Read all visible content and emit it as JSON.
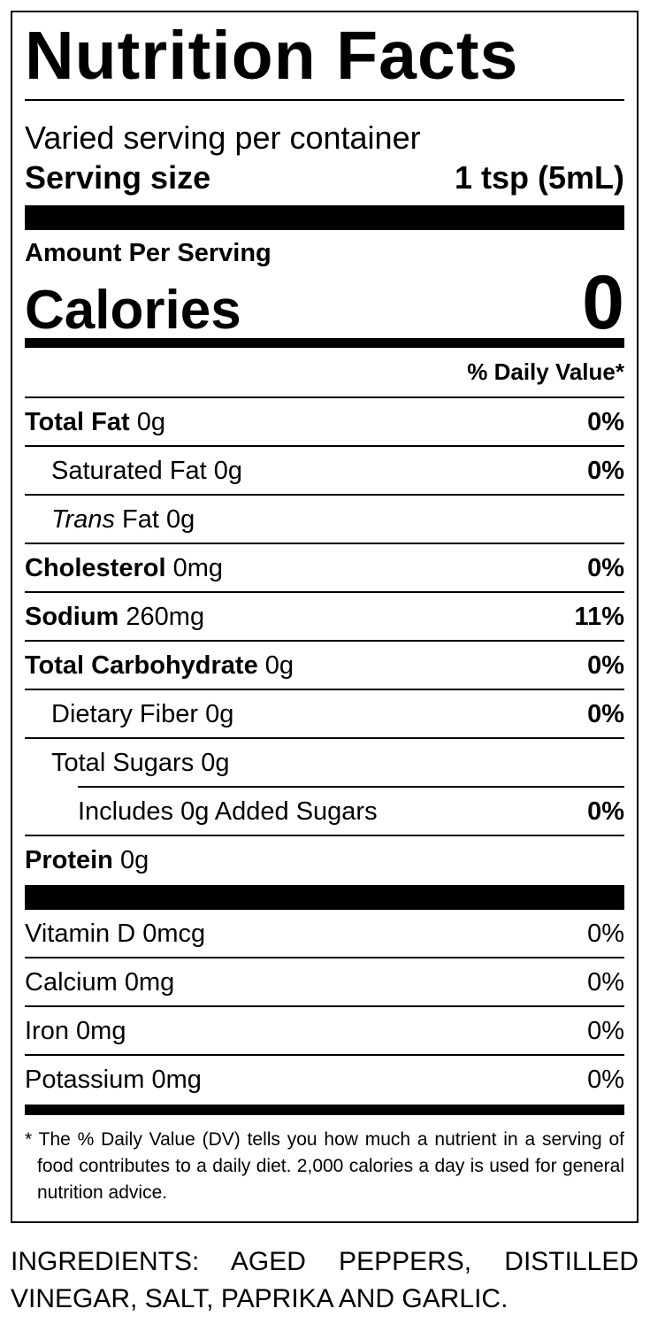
{
  "title": "Nutrition Facts",
  "servings": "Varied serving per container",
  "serving_size": {
    "label": "Serving size",
    "value": "1 tsp (5mL)"
  },
  "amount_per_serving": "Amount Per Serving",
  "calories": {
    "label": "Calories",
    "value": 0
  },
  "daily_value_header": "% Daily Value*",
  "nutrients": [
    {
      "name": "Total Fat",
      "amount": "0g",
      "dv": "0%"
    },
    {
      "name": "Saturated Fat",
      "amount": "0g",
      "dv": "0%"
    },
    {
      "name_italic": "Trans",
      "name": "Fat",
      "amount": "0g"
    },
    {
      "name": "Cholesterol",
      "amount": "0mg",
      "dv": "0%"
    },
    {
      "name": "Sodium",
      "amount": "260mg",
      "dv": "11%"
    },
    {
      "name": "Total Carbohydrate",
      "amount": "0g",
      "dv": "0%"
    },
    {
      "name": "Dietary Fiber",
      "amount": "0g",
      "dv": "0%"
    },
    {
      "name": "Total Sugars",
      "amount": "0g"
    },
    {
      "name": "Includes 0g Added Sugars",
      "dv": "0%"
    },
    {
      "name": "Protein",
      "amount": "0g"
    }
  ],
  "vitamins": [
    {
      "name": "Vitamin D",
      "amount": "0mcg",
      "dv": "0%"
    },
    {
      "name": "Calcium",
      "amount": "0mg",
      "dv": "0%"
    },
    {
      "name": "Iron",
      "amount": "0mg",
      "dv": "0%"
    },
    {
      "name": "Potassium",
      "amount": "0mg",
      "dv": "0%"
    }
  ],
  "footnote": {
    "marker": "*",
    "text": "The % Daily Value (DV) tells you how much a nutrient in a serving of food contributes to a daily diet. 2,000 calories a day is used for general nutrition advice."
  },
  "ingredients": "INGREDIENTS: AGED PEPPERS, DISTILLED VINEGAR, SALT, PAPRIKA AND GARLIC."
}
